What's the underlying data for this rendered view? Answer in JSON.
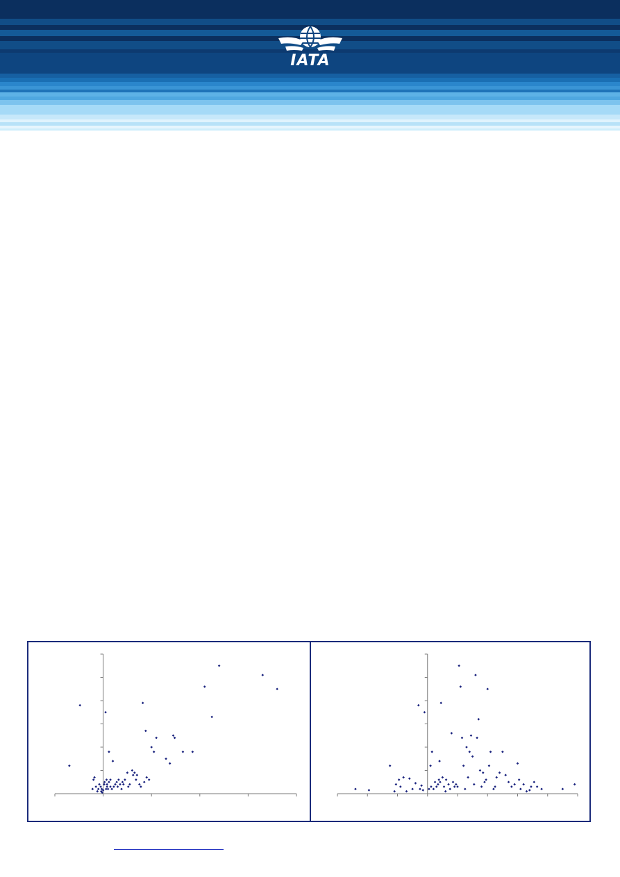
{
  "header": {
    "logo_text": "IATA",
    "logo_icon": "globe-wings-icon",
    "brand_color": "#0c3a6e",
    "stripe_colors": [
      "#0a2d5c",
      "#0d4a84",
      "#1a6fb4",
      "#3a95d6",
      "#7cc3ee",
      "#b8e2f8",
      "#e6f5fd"
    ]
  },
  "chart_data": [
    {
      "type": "scatter",
      "title": "",
      "xlabel": "",
      "ylabel": "",
      "x_ticks": [
        -1,
        0,
        1,
        2,
        3,
        4
      ],
      "y_ticks": [
        0,
        1,
        2,
        3,
        4,
        5,
        6
      ],
      "xlim": [
        -1,
        4
      ],
      "ylim": [
        0,
        6
      ],
      "marker_color": "#1a237e",
      "series": [
        {
          "x": [
            -0.7,
            -0.48,
            -0.22,
            -0.2,
            -0.18,
            -0.15,
            -0.12,
            -0.1,
            -0.08,
            -0.05,
            -0.04,
            -0.03,
            -0.02,
            0,
            0.02,
            0.03,
            0.05,
            0.06,
            0.07,
            0.08,
            0.08,
            0.1,
            0.12,
            0.12,
            0.15,
            0.15,
            0.18,
            0.2,
            0.22,
            0.25,
            0.28,
            0.3,
            0.32,
            0.35,
            0.38,
            0.4,
            0.42,
            0.45,
            0.5,
            0.52,
            0.55,
            0.6,
            0.62,
            0.65,
            0.68,
            0.7,
            0.75,
            0.78,
            0.82,
            0.85,
            0.88,
            0.9,
            0.95,
            1.0,
            1.05,
            1.1,
            1.3,
            1.38,
            1.45,
            1.48,
            1.65,
            1.85,
            2.1,
            2.25,
            2.4,
            3.3,
            3.6
          ],
          "y": [
            1.2,
            3.8,
            0.2,
            0.6,
            0.7,
            0.3,
            0.1,
            0.2,
            0.4,
            0.3,
            0.1,
            0.2,
            0.05,
            0.15,
            0.4,
            0.5,
            3.5,
            0.2,
            0.6,
            0.4,
            0.3,
            0.2,
            1.8,
            0.5,
            0.3,
            0.6,
            0.2,
            1.4,
            0.3,
            0.4,
            0.5,
            0.3,
            0.6,
            0.4,
            0.2,
            0.5,
            0.4,
            0.6,
            0.9,
            0.3,
            0.4,
            1.0,
            0.8,
            0.9,
            0.6,
            0.8,
            0.4,
            0.3,
            3.9,
            0.5,
            2.7,
            0.7,
            0.6,
            2.0,
            1.8,
            2.4,
            1.5,
            1.3,
            2.5,
            2.4,
            1.8,
            1.8,
            4.6,
            3.3,
            5.5,
            5.1,
            4.5
          ]
        }
      ]
    },
    {
      "type": "scatter",
      "title": "",
      "xlabel": "",
      "ylabel": "",
      "x_ticks": [
        -3,
        -2,
        -1,
        0,
        1,
        2,
        3,
        4,
        5
      ],
      "y_ticks": [
        0,
        1,
        2,
        3,
        4,
        5,
        6
      ],
      "xlim": [
        -3,
        5
      ],
      "ylim": [
        0,
        6
      ],
      "marker_color": "#1a237e",
      "series": [
        {
          "x": [
            -2.4,
            -1.95,
            -1.25,
            -1.1,
            -1.05,
            -0.95,
            -0.9,
            -0.8,
            -0.7,
            -0.6,
            -0.5,
            -0.4,
            -0.3,
            -0.25,
            -0.2,
            -0.15,
            -0.1,
            0.05,
            0.1,
            0.12,
            0.15,
            0.2,
            0.25,
            0.3,
            0.35,
            0.38,
            0.4,
            0.42,
            0.45,
            0.5,
            0.55,
            0.6,
            0.62,
            0.7,
            0.75,
            0.8,
            0.85,
            0.9,
            0.95,
            1.0,
            1.05,
            1.1,
            1.15,
            1.2,
            1.25,
            1.3,
            1.35,
            1.4,
            1.45,
            1.5,
            1.55,
            1.6,
            1.65,
            1.7,
            1.75,
            1.8,
            1.85,
            1.9,
            1.95,
            2.0,
            2.05,
            2.1,
            2.2,
            2.25,
            2.3,
            2.4,
            2.5,
            2.6,
            2.7,
            2.8,
            2.9,
            3.0,
            3.05,
            3.1,
            3.2,
            3.3,
            3.4,
            3.45,
            3.55,
            3.65,
            3.8,
            4.5,
            4.9
          ],
          "y": [
            0.2,
            0.15,
            1.2,
            0.1,
            0.4,
            0.6,
            0.3,
            0.7,
            0.1,
            0.65,
            0.2,
            0.45,
            3.8,
            0.2,
            0.35,
            0.15,
            3.5,
            0.2,
            1.2,
            0.3,
            1.8,
            0.2,
            0.5,
            0.3,
            0.4,
            0.6,
            1.4,
            0.5,
            3.9,
            0.7,
            0.3,
            0.1,
            0.6,
            0.4,
            0.2,
            2.6,
            0.5,
            0.3,
            0.4,
            0.3,
            5.5,
            4.6,
            2.4,
            1.2,
            0.2,
            2.0,
            0.7,
            1.8,
            2.5,
            1.6,
            0.4,
            5.1,
            2.4,
            3.2,
            1.0,
            0.3,
            0.9,
            0.5,
            0.6,
            4.5,
            1.2,
            1.8,
            0.2,
            0.3,
            0.7,
            0.9,
            1.8,
            0.8,
            0.5,
            0.3,
            0.4,
            1.3,
            0.6,
            0.2,
            0.4,
            0.1,
            0.15,
            0.3,
            0.5,
            0.3,
            0.2,
            0.2,
            0.4
          ]
        }
      ]
    }
  ],
  "footer": {
    "link_text": ""
  }
}
